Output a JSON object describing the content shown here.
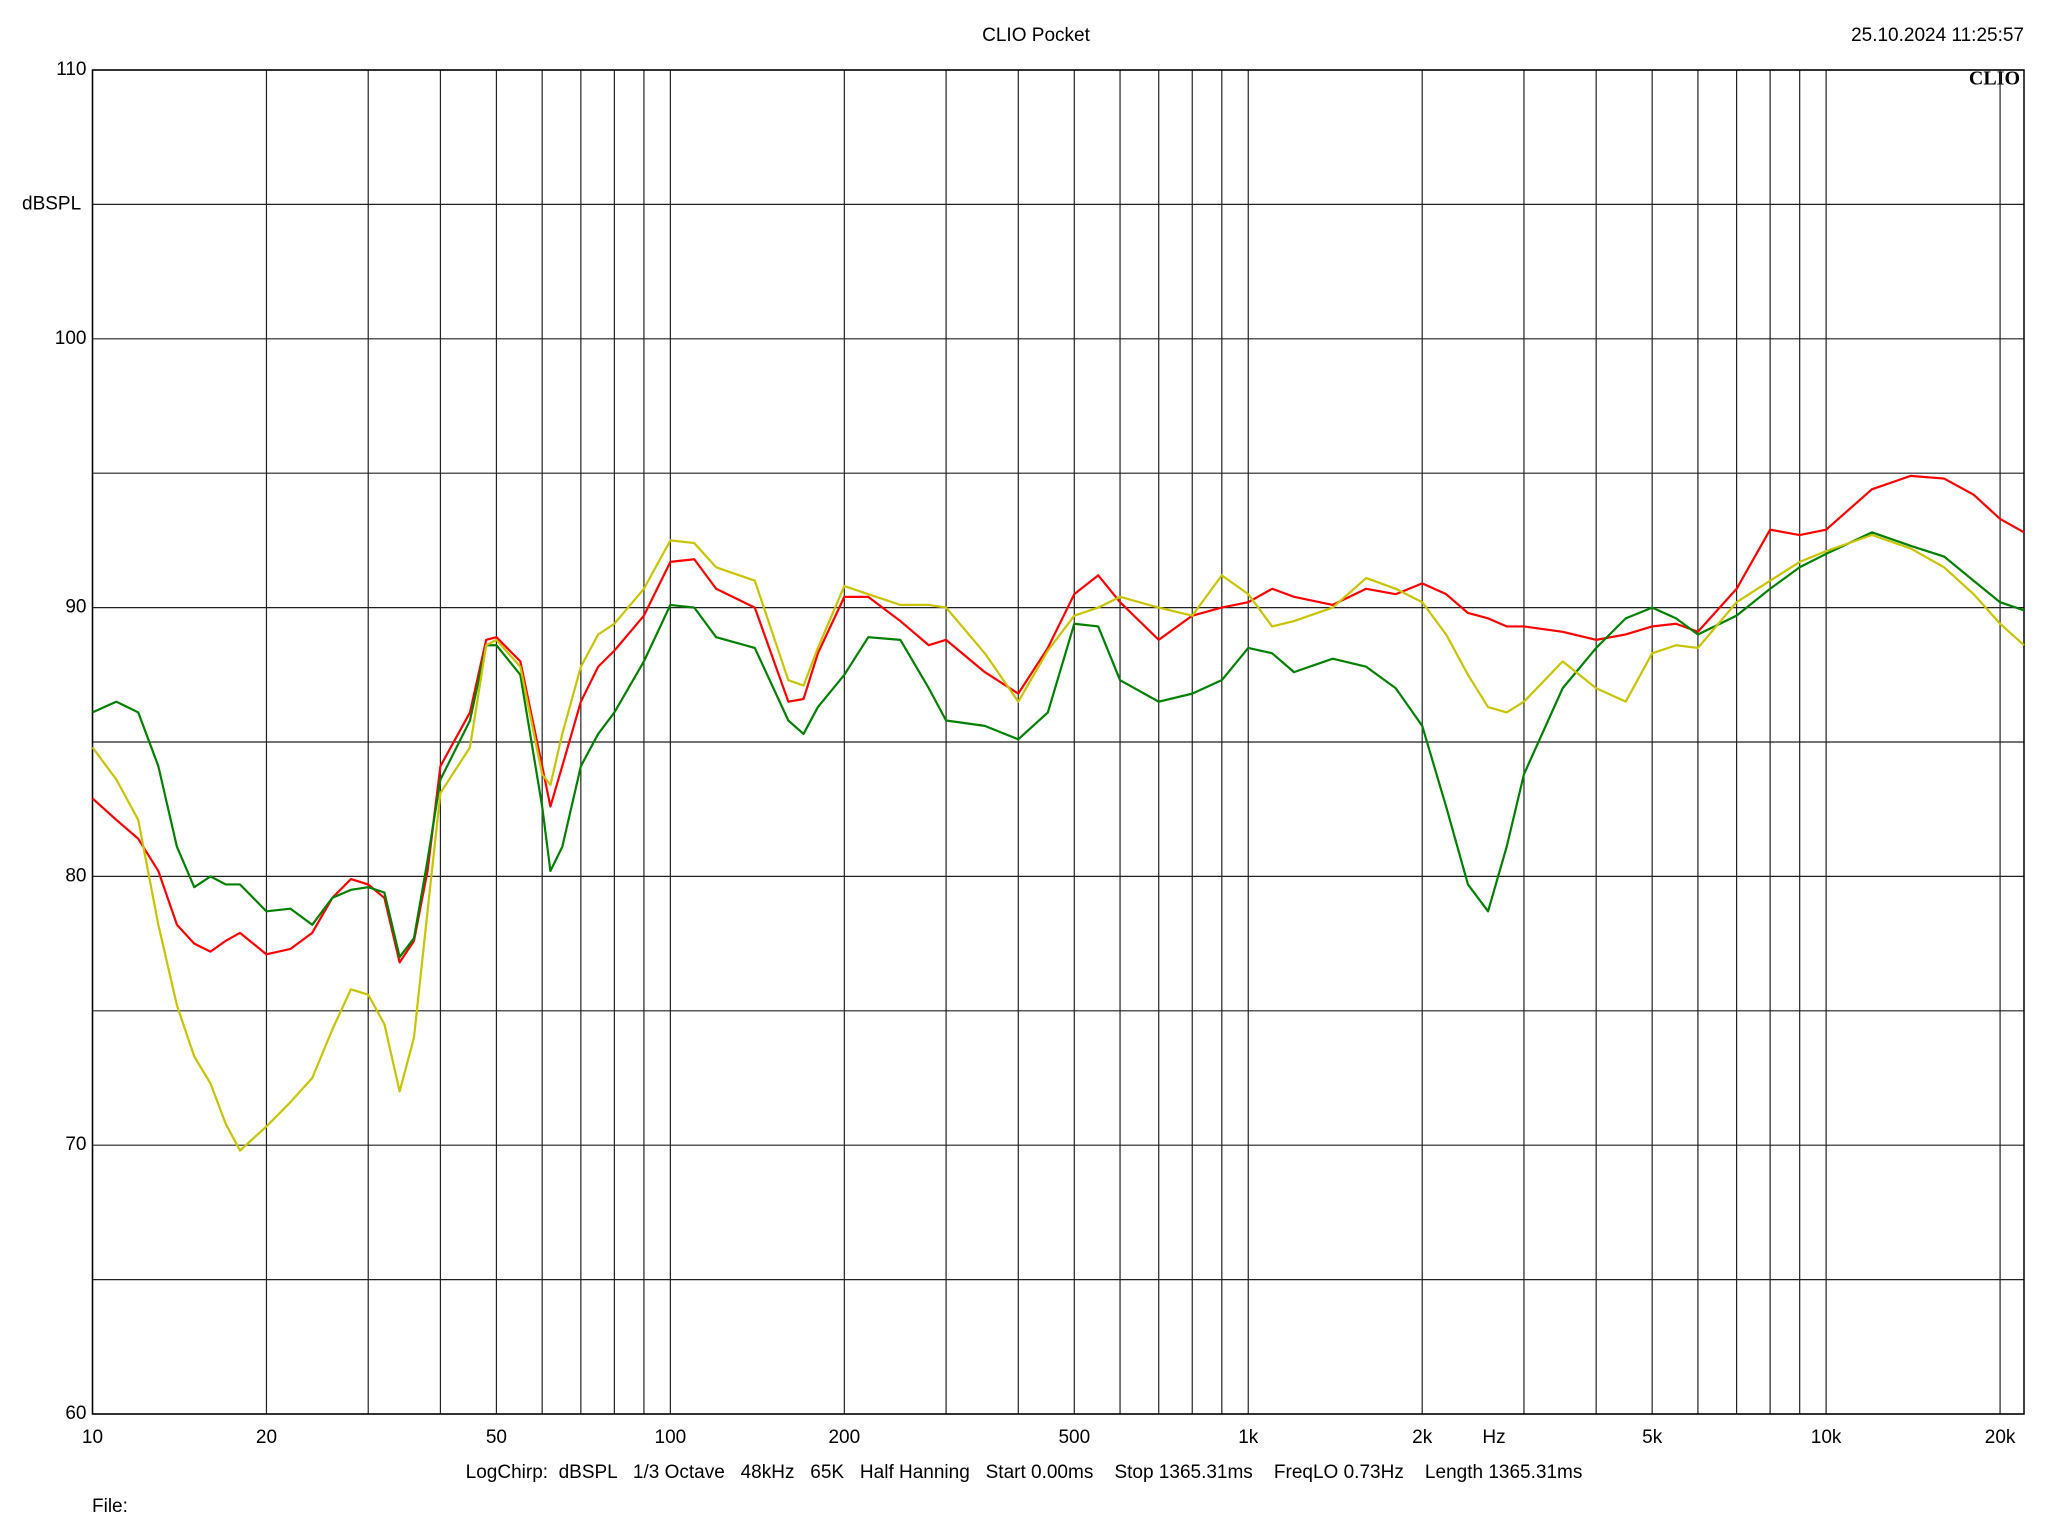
{
  "chart_data": {
    "type": "line",
    "title": "CLIO Pocket",
    "timestamp": "25.10.2024 11:25:57",
    "logo": "CLIO",
    "y_label": "dBSPL",
    "x_label": "Hz",
    "footer": "LogChirp:  dBSPL   1/3 Octave   48kHz   65K   Half Hanning   Start 0.00ms    Stop 1365.31ms    FreqLO 0.73Hz    Length 1365.31ms",
    "file_label": "File:",
    "x_log": true,
    "grid": true,
    "xlim": [
      10,
      22000
    ],
    "ylim": [
      60,
      110
    ],
    "xticks": [
      10,
      20,
      50,
      100,
      200,
      500,
      {
        "value": 1000,
        "label": "1k"
      },
      {
        "value": 2000,
        "label": "2k"
      },
      {
        "value": 5000,
        "label": "5k"
      },
      {
        "value": 10000,
        "label": "10k"
      },
      {
        "value": 20000,
        "label": "20k"
      }
    ],
    "xgrid_minor": [
      30,
      40,
      60,
      70,
      80,
      90,
      300,
      400,
      600,
      700,
      800,
      900,
      3000,
      4000,
      6000,
      7000,
      8000,
      9000
    ],
    "yticks": [
      60,
      70,
      80,
      90,
      100,
      110
    ],
    "ygrid_minor": [
      65,
      75,
      85,
      95,
      105
    ],
    "x": [
      10,
      11,
      12,
      13,
      14,
      15,
      16,
      17,
      18,
      20,
      22,
      24,
      26,
      28,
      30,
      32,
      34,
      36,
      38,
      40,
      45,
      48,
      50,
      55,
      60,
      62,
      65,
      70,
      75,
      80,
      90,
      100,
      110,
      120,
      140,
      160,
      170,
      180,
      200,
      220,
      250,
      280,
      300,
      350,
      400,
      450,
      500,
      550,
      600,
      700,
      800,
      900,
      1000,
      1100,
      1200,
      1400,
      1600,
      1800,
      2000,
      2200,
      2400,
      2600,
      2800,
      3000,
      3500,
      4000,
      4500,
      5000,
      5500,
      6000,
      7000,
      8000,
      9000,
      10000,
      12000,
      14000,
      16000,
      18000,
      20000,
      22000
    ],
    "series": [
      {
        "color": "#ff0000",
        "values": [
          82.9,
          82.1,
          81.4,
          80.2,
          78.2,
          77.5,
          77.2,
          77.6,
          77.9,
          77.1,
          77.3,
          77.9,
          79.2,
          79.9,
          79.7,
          79.2,
          76.8,
          77.6,
          80.2,
          84.1,
          86.1,
          88.8,
          88.9,
          88.0,
          84.1,
          82.6,
          84.1,
          86.5,
          87.8,
          88.4,
          89.7,
          91.7,
          91.8,
          90.7,
          90.0,
          86.5,
          86.6,
          88.3,
          90.4,
          90.4,
          89.5,
          88.6,
          88.8,
          87.6,
          86.8,
          88.5,
          90.5,
          91.2,
          90.2,
          88.8,
          89.7,
          90.0,
          90.2,
          90.7,
          90.4,
          90.1,
          90.7,
          90.5,
          90.9,
          90.5,
          89.8,
          89.6,
          89.3,
          89.3,
          89.1,
          88.8,
          89.0,
          89.3,
          89.4,
          89.1,
          90.7,
          92.9,
          92.7,
          92.9,
          94.4,
          94.9,
          94.8,
          94.2,
          93.3,
          92.8
        ]
      },
      {
        "color": "#008000",
        "values": [
          86.1,
          86.5,
          86.1,
          84.1,
          81.1,
          79.6,
          80.0,
          79.7,
          79.7,
          78.7,
          78.8,
          78.2,
          79.2,
          79.5,
          79.6,
          79.4,
          77.0,
          77.7,
          80.6,
          83.6,
          85.8,
          88.6,
          88.6,
          87.5,
          82.6,
          80.2,
          81.1,
          84.1,
          85.3,
          86.1,
          88.0,
          90.1,
          90.0,
          88.9,
          88.5,
          85.8,
          85.3,
          86.3,
          87.5,
          88.9,
          88.8,
          87.0,
          85.8,
          85.6,
          85.1,
          86.1,
          89.4,
          89.3,
          87.3,
          86.5,
          86.8,
          87.3,
          88.5,
          88.3,
          87.6,
          88.1,
          87.8,
          87.0,
          85.6,
          82.6,
          79.7,
          78.7,
          81.1,
          83.8,
          87.0,
          88.5,
          89.6,
          90.0,
          89.6,
          89.0,
          89.7,
          90.7,
          91.5,
          92.0,
          92.8,
          92.3,
          91.9,
          91.0,
          90.2,
          89.9
        ]
      },
      {
        "color": "#c8c400",
        "values": [
          84.8,
          83.6,
          82.1,
          78.2,
          75.2,
          73.3,
          72.3,
          70.8,
          69.8,
          70.7,
          71.6,
          72.5,
          74.3,
          75.8,
          75.6,
          74.5,
          72.0,
          74.0,
          78.7,
          83.1,
          84.8,
          88.6,
          88.8,
          87.8,
          83.8,
          83.4,
          85.3,
          87.8,
          89.0,
          89.4,
          90.7,
          92.5,
          92.4,
          91.5,
          91.0,
          87.3,
          87.1,
          88.5,
          90.8,
          90.5,
          90.1,
          90.1,
          90.0,
          88.3,
          86.5,
          88.4,
          89.7,
          90.0,
          90.4,
          90.0,
          89.7,
          91.2,
          90.5,
          89.3,
          89.5,
          90.0,
          91.1,
          90.7,
          90.2,
          89.0,
          87.5,
          86.3,
          86.1,
          86.5,
          88.0,
          87.0,
          86.5,
          88.3,
          88.6,
          88.5,
          90.2,
          91.0,
          91.7,
          92.1,
          92.7,
          92.2,
          91.5,
          90.5,
          89.4,
          88.6
        ]
      }
    ]
  }
}
